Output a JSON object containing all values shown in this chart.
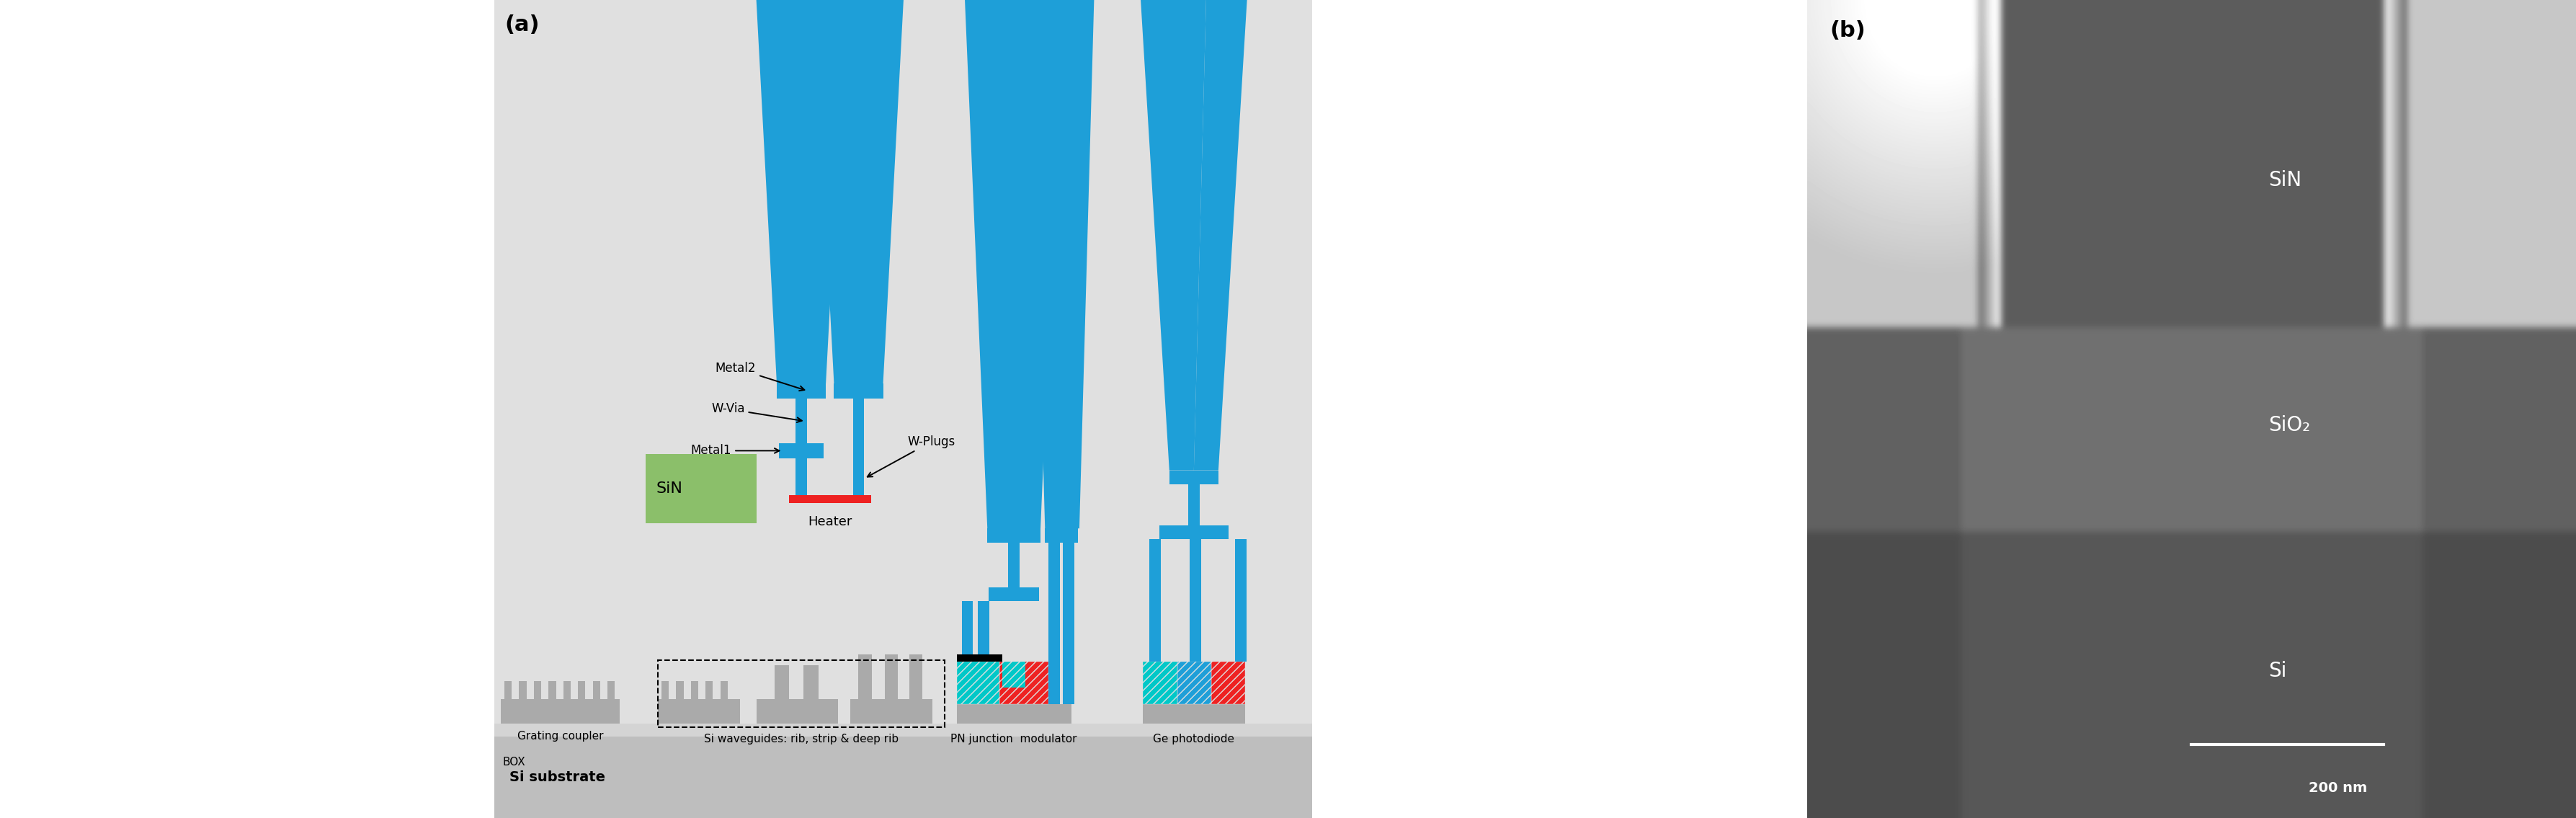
{
  "fig_width": 35.75,
  "fig_height": 11.35,
  "panel_a_bg": "#E0E0E0",
  "panel_b_bg": "#808080",
  "blue": "#1E9FD8",
  "green": "#8BBF6A",
  "gray": "#AAAAAA",
  "red": "#EE2222",
  "cyan": "#00C8C8",
  "black": "#111111",
  "substrate_color": "#BEBEBE",
  "box_color": "#D4D4D4",
  "substrate_label": "Si substrate",
  "box_label": "BOX",
  "grating_label": "Grating coupler",
  "sin_label": "SiN",
  "heater_label": "Heater",
  "metal2_label": "Metal2",
  "metal1_label": "Metal1",
  "wvia_label": "W-Via",
  "wplugs_label": "W-Plugs",
  "si_wg_label": "Si waveguides: rib, strip & deep rib",
  "pn_label": "PN junction  modulator",
  "ge_label": "Ge photodiode",
  "panel_a_label": "(a)",
  "panel_b_label": "(b)",
  "sem_sin_label": "SiN",
  "sem_sio2_label": "SiO₂",
  "sem_si_label": "Si",
  "sem_scale_label": "200 nm",
  "sem_light_bg": "#C8C8C8",
  "sem_sin_dark": "#555555",
  "sem_sio2_dark": "#606060",
  "sem_si_dark": "#505050",
  "sem_very_light": "#D8D8D8"
}
